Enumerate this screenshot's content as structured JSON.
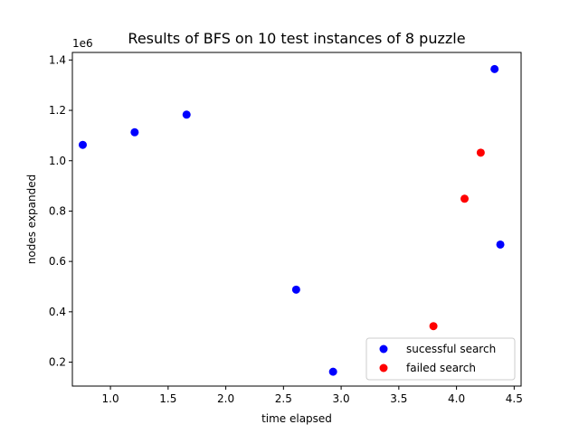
{
  "chart_data": {
    "type": "scatter",
    "title": "Results of BFS on 10 test instances of 8 puzzle",
    "xlabel": "time elapsed",
    "ylabel": "nodes expanded",
    "y_offset_label": "1e6",
    "xlim": [
      0.67,
      4.56
    ],
    "ylim": [
      0.105,
      1.43
    ],
    "x_ticks": [
      1.0,
      1.5,
      2.0,
      2.5,
      3.0,
      3.5,
      4.0,
      4.5
    ],
    "x_tick_labels": [
      "1.0",
      "1.5",
      "2.0",
      "2.5",
      "3.0",
      "3.5",
      "4.0",
      "4.5"
    ],
    "y_ticks": [
      0.2,
      0.4,
      0.6,
      0.8,
      1.0,
      1.2,
      1.4
    ],
    "y_tick_labels": [
      "0.2",
      "0.4",
      "0.6",
      "0.8",
      "1.0",
      "1.2",
      "1.4"
    ],
    "grid": false,
    "legend_position": "lower-right",
    "series": [
      {
        "name": "sucessful search",
        "color": "#0000ff",
        "points": [
          {
            "x": 0.76,
            "y": 1.063
          },
          {
            "x": 1.21,
            "y": 1.113
          },
          {
            "x": 1.66,
            "y": 1.183
          },
          {
            "x": 2.61,
            "y": 0.488
          },
          {
            "x": 2.93,
            "y": 0.162
          },
          {
            "x": 4.33,
            "y": 1.364
          },
          {
            "x": 4.38,
            "y": 0.667
          }
        ]
      },
      {
        "name": "failed search",
        "color": "#ff0000",
        "points": [
          {
            "x": 3.8,
            "y": 0.343
          },
          {
            "x": 4.07,
            "y": 0.849
          },
          {
            "x": 4.21,
            "y": 1.032
          }
        ]
      }
    ]
  }
}
